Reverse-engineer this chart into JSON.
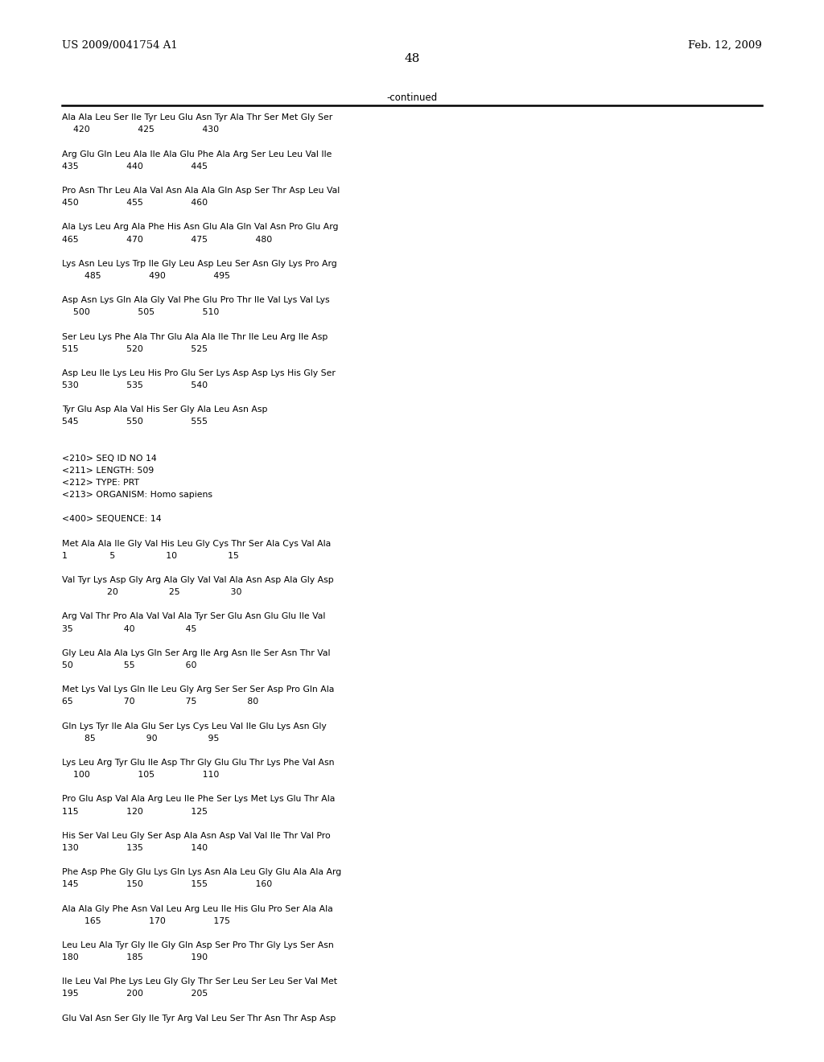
{
  "header_left": "US 2009/0041754 A1",
  "header_right": "Feb. 12, 2009",
  "page_number": "48",
  "continued_label": "-continued",
  "background_color": "#ffffff",
  "text_color": "#000000",
  "content_lines": [
    "Ala Ala Leu Ser Ile Tyr Leu Glu Asn Tyr Ala Thr Ser Met Gly Ser",
    "    420                 425                 430",
    "",
    "Arg Glu Gln Leu Ala Ile Ala Glu Phe Ala Arg Ser Leu Leu Val Ile",
    "435                 440                 445",
    "",
    "Pro Asn Thr Leu Ala Val Asn Ala Ala Gln Asp Ser Thr Asp Leu Val",
    "450                 455                 460",
    "",
    "Ala Lys Leu Arg Ala Phe His Asn Glu Ala Gln Val Asn Pro Glu Arg",
    "465                 470                 475                 480",
    "",
    "Lys Asn Leu Lys Trp Ile Gly Leu Asp Leu Ser Asn Gly Lys Pro Arg",
    "        485                 490                 495",
    "",
    "Asp Asn Lys Gln Ala Gly Val Phe Glu Pro Thr Ile Val Lys Val Lys",
    "    500                 505                 510",
    "",
    "Ser Leu Lys Phe Ala Thr Glu Ala Ala Ile Thr Ile Leu Arg Ile Asp",
    "515                 520                 525",
    "",
    "Asp Leu Ile Lys Leu His Pro Glu Ser Lys Asp Asp Lys His Gly Ser",
    "530                 535                 540",
    "",
    "Tyr Glu Asp Ala Val His Ser Gly Ala Leu Asn Asp",
    "545                 550                 555",
    "",
    "",
    "<210> SEQ ID NO 14",
    "<211> LENGTH: 509",
    "<212> TYPE: PRT",
    "<213> ORGANISM: Homo sapiens",
    "",
    "<400> SEQUENCE: 14",
    "",
    "Met Ala Ala Ile Gly Val His Leu Gly Cys Thr Ser Ala Cys Val Ala",
    "1               5                  10                  15",
    "",
    "Val Tyr Lys Asp Gly Arg Ala Gly Val Val Ala Asn Asp Ala Gly Asp",
    "                20                  25                  30",
    "",
    "Arg Val Thr Pro Ala Val Val Ala Tyr Ser Glu Asn Glu Glu Ile Val",
    "35                  40                  45",
    "",
    "Gly Leu Ala Ala Lys Gln Ser Arg Ile Arg Asn Ile Ser Asn Thr Val",
    "50                  55                  60",
    "",
    "Met Lys Val Lys Gln Ile Leu Gly Arg Ser Ser Ser Asp Pro Gln Ala",
    "65                  70                  75                  80",
    "",
    "Gln Lys Tyr Ile Ala Glu Ser Lys Cys Leu Val Ile Glu Lys Asn Gly",
    "        85                  90                  95",
    "",
    "Lys Leu Arg Tyr Glu Ile Asp Thr Gly Glu Glu Thr Lys Phe Val Asn",
    "    100                 105                 110",
    "",
    "Pro Glu Asp Val Ala Arg Leu Ile Phe Ser Lys Met Lys Glu Thr Ala",
    "115                 120                 125",
    "",
    "His Ser Val Leu Gly Ser Asp Ala Asn Asp Val Val Ile Thr Val Pro",
    "130                 135                 140",
    "",
    "Phe Asp Phe Gly Glu Lys Gln Lys Asn Ala Leu Gly Glu Ala Ala Arg",
    "145                 150                 155                 160",
    "",
    "Ala Ala Gly Phe Asn Val Leu Arg Leu Ile His Glu Pro Ser Ala Ala",
    "        165                 170                 175",
    "",
    "Leu Leu Ala Tyr Gly Ile Gly Gln Asp Ser Pro Thr Gly Lys Ser Asn",
    "180                 185                 190",
    "",
    "Ile Leu Val Phe Lys Leu Gly Gly Thr Ser Leu Ser Leu Ser Val Met",
    "195                 200                 205",
    "",
    "Glu Val Asn Ser Gly Ile Tyr Arg Val Leu Ser Thr Asn Thr Asp Asp"
  ]
}
